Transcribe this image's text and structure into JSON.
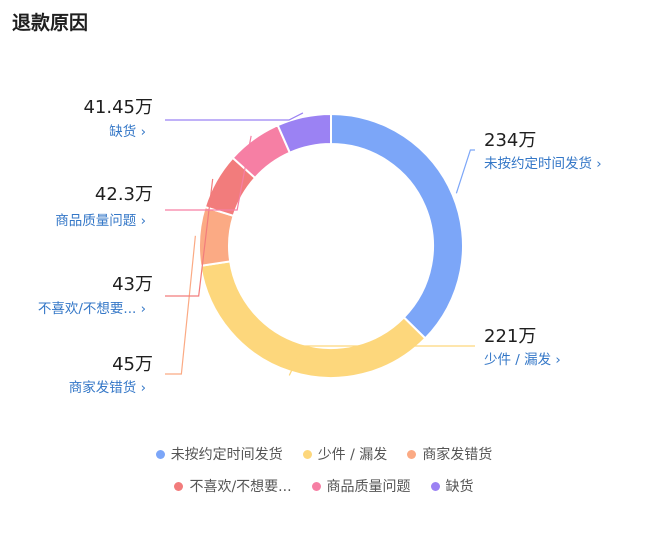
{
  "title": "退款原因",
  "chart_data": {
    "type": "pie",
    "title": "退款原因",
    "slices": [
      {
        "name": "未按约定时间发货",
        "value": 234,
        "display": "234万",
        "color": "#7ca6f8",
        "label_name": "未按约定时间发货",
        "side": "right"
      },
      {
        "name": "少件 / 漏发",
        "value": 221,
        "display": "221万",
        "color": "#fdd77c",
        "label_name": "少件 / 漏发",
        "side": "right"
      },
      {
        "name": "商家发错货",
        "value": 45,
        "display": "45万",
        "color": "#fbaa84",
        "label_name": "商家发错货",
        "side": "left"
      },
      {
        "name": "不喜欢/不想要...",
        "value": 43,
        "display": "43万",
        "color": "#f27c7c",
        "label_name": "不喜欢/不想要...",
        "side": "left"
      },
      {
        "name": "商品质量问题",
        "value": 42.3,
        "display": "42.3万",
        "color": "#f67fa4",
        "label_name": "商品质量问题",
        "side": "left"
      },
      {
        "name": "缺货",
        "value": 41.45,
        "display": "41.45万",
        "color": "#9b82f3",
        "label_name": "缺货",
        "side": "left"
      }
    ],
    "legend": {
      "rows": [
        [
          "未按约定时间发货",
          "少件 / 漏发",
          "商家发错货"
        ],
        [
          "不喜欢/不想要...",
          "商品质量问题",
          "缺货"
        ]
      ],
      "position": "bottom"
    },
    "arrow": "›"
  }
}
